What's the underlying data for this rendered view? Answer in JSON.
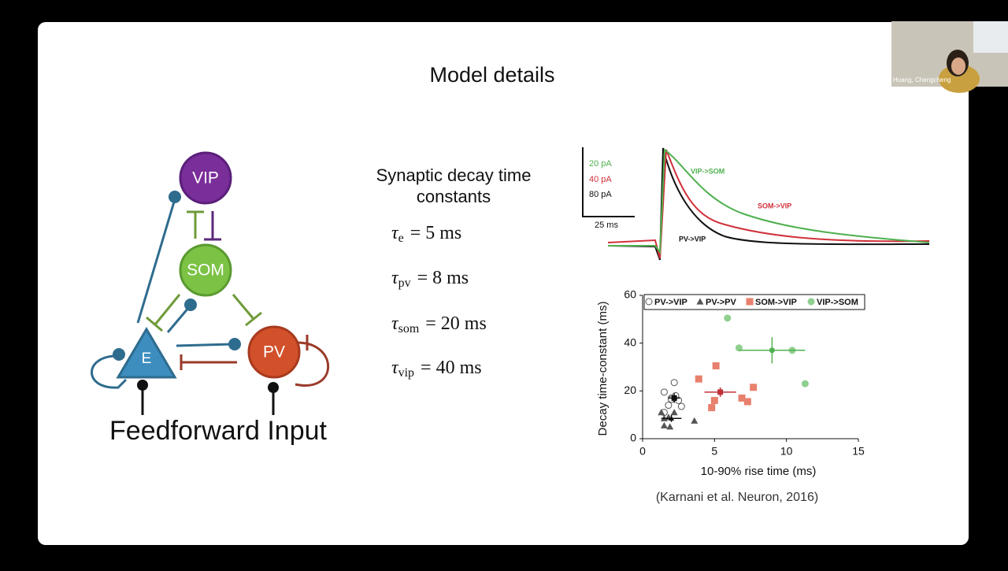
{
  "participant": "Huang, Chengcheng",
  "slide": {
    "title": "Model details",
    "diagram": {
      "nodes": [
        "VIP",
        "SOM",
        "E",
        "PV"
      ],
      "input": "Feedforward Input"
    },
    "constants": {
      "heading": [
        "Synaptic decay time",
        "constants"
      ],
      "symbol": "τ",
      "items": [
        {
          "sub": "e",
          "rhs": "= 5 ms"
        },
        {
          "sub": "pv",
          "rhs": "= 8 ms"
        },
        {
          "sub": "som",
          "rhs": "= 20 ms"
        },
        {
          "sub": "vip",
          "rhs": "= 40 ms"
        }
      ]
    },
    "traces": {
      "scale_labels": [
        "20 pA",
        "40 pA",
        "80 pA"
      ],
      "time_label": "25 ms",
      "trace_labels": [
        "VIP->SOM",
        "SOM->VIP",
        "PV->VIP"
      ]
    },
    "scatter": {
      "type": "scatter",
      "xlabel": "10-90% rise time (ms)",
      "ylabel": "Decay time-constant (ms)",
      "xlim": [
        0,
        15
      ],
      "xticks": [
        0,
        5,
        10,
        15
      ],
      "ylim": [
        0,
        60
      ],
      "yticks": [
        0,
        20,
        40,
        60
      ],
      "series": [
        {
          "name": "PV->VIP",
          "color": "#555555",
          "marker": "open-circle",
          "points": [
            [
              1.5,
              19.5
            ],
            [
              2.0,
              17
            ],
            [
              2.2,
              23.5
            ],
            [
              2.5,
              16
            ],
            [
              2.7,
              13.5
            ],
            [
              1.8,
              14
            ],
            [
              2.3,
              18
            ],
            [
              1.5,
              11
            ],
            [
              2.0,
              16.5
            ]
          ],
          "mean": {
            "x": 2.2,
            "y": 17,
            "xerr": 0.4,
            "yerr": 2
          }
        },
        {
          "name": "PV->PV",
          "color": "#555555",
          "marker": "triangle",
          "points": [
            [
              1.3,
              11
            ],
            [
              1.5,
              8.5
            ],
            [
              1.5,
              5.5
            ],
            [
              1.9,
              5
            ],
            [
              2.2,
              11
            ],
            [
              3.6,
              7.5
            ],
            [
              1.8,
              9
            ]
          ],
          "mean": {
            "x": 2.0,
            "y": 8.5,
            "xerr": 0.7,
            "yerr": 1.5
          }
        },
        {
          "name": "SOM->VIP",
          "color": "#e8806e",
          "marker": "square",
          "points": [
            [
              3.9,
              25
            ],
            [
              5.1,
              30.5
            ],
            [
              4.8,
              13
            ],
            [
              5.0,
              16
            ],
            [
              6.9,
              17
            ],
            [
              7.3,
              15.5
            ],
            [
              7.7,
              21.5
            ]
          ],
          "mean": {
            "x": 5.4,
            "y": 19.5,
            "xerr": 1.1,
            "yerr": 2
          }
        },
        {
          "name": "VIP->SOM",
          "color": "#8fcf8f",
          "marker": "circle",
          "points": [
            [
              5.9,
              50.5
            ],
            [
              6.7,
              38
            ],
            [
              10.4,
              37
            ],
            [
              11.3,
              23
            ]
          ],
          "mean": {
            "x": 9.0,
            "y": 37,
            "xerr": 2.3,
            "yerr": 5.5
          }
        }
      ]
    },
    "caption": "(Karnani et al. Neuron, 2016)"
  }
}
